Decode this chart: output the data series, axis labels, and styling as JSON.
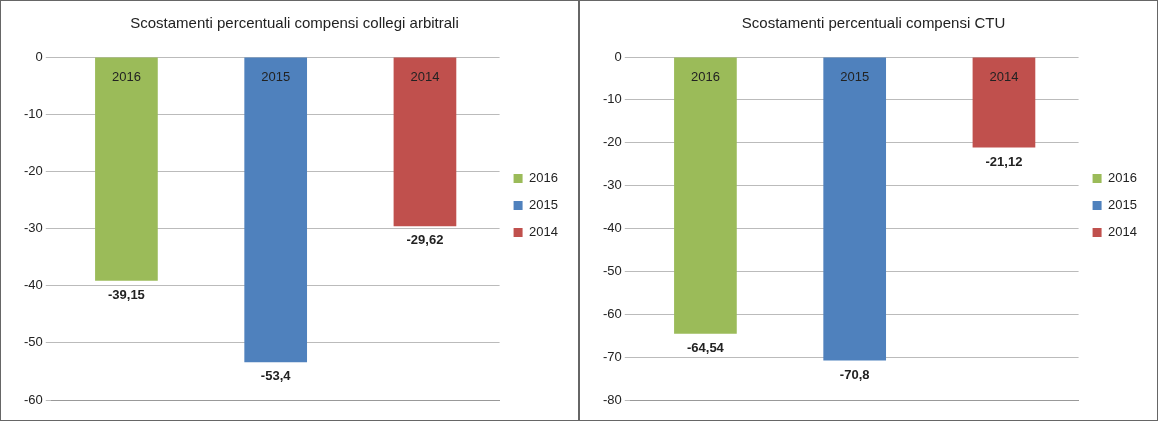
{
  "chart_data": [
    {
      "type": "bar",
      "title": "Scostamenti percentuali compensi collegi arbitrali",
      "categories": [
        null,
        null,
        null
      ],
      "series": [
        {
          "name": "2016",
          "color": "#9bbb59",
          "values": [
            -39.15,
            null,
            null
          ],
          "value_labels": [
            "-39,15",
            null,
            null
          ]
        },
        {
          "name": "2015",
          "color": "#4f81bd",
          "values": [
            null,
            -53.4,
            null
          ],
          "value_labels": [
            null,
            "-53,4",
            null
          ]
        },
        {
          "name": "2014",
          "color": "#c0504d",
          "values": [
            null,
            null,
            -29.62
          ],
          "value_labels": [
            null,
            null,
            "-29,62"
          ]
        }
      ],
      "ylim": [
        -60,
        0
      ],
      "yticks": [
        -60,
        -50,
        -40,
        -30,
        -20,
        -10,
        0
      ],
      "grid": "y",
      "legend": "right",
      "tick_labels": "y"
    },
    {
      "type": "bar",
      "title": "Scostamenti percentuali compensi CTU",
      "categories": [
        null,
        null,
        null
      ],
      "series": [
        {
          "name": "2016",
          "color": "#9bbb59",
          "values": [
            -64.54,
            null,
            null
          ],
          "value_labels": [
            "-64,54",
            null,
            null
          ]
        },
        {
          "name": "2015",
          "color": "#4f81bd",
          "values": [
            null,
            -70.8,
            null
          ],
          "value_labels": [
            null,
            "-70,8",
            null
          ]
        },
        {
          "name": "2014",
          "color": "#c0504d",
          "values": [
            null,
            null,
            -21.12
          ],
          "value_labels": [
            null,
            null,
            "-21,12"
          ]
        }
      ],
      "ylim": [
        -80,
        0
      ],
      "yticks": [
        -80,
        -70,
        -60,
        -50,
        -40,
        -30,
        -20,
        -10,
        0
      ],
      "grid": "y",
      "legend": "right",
      "tick_labels": "y"
    }
  ]
}
